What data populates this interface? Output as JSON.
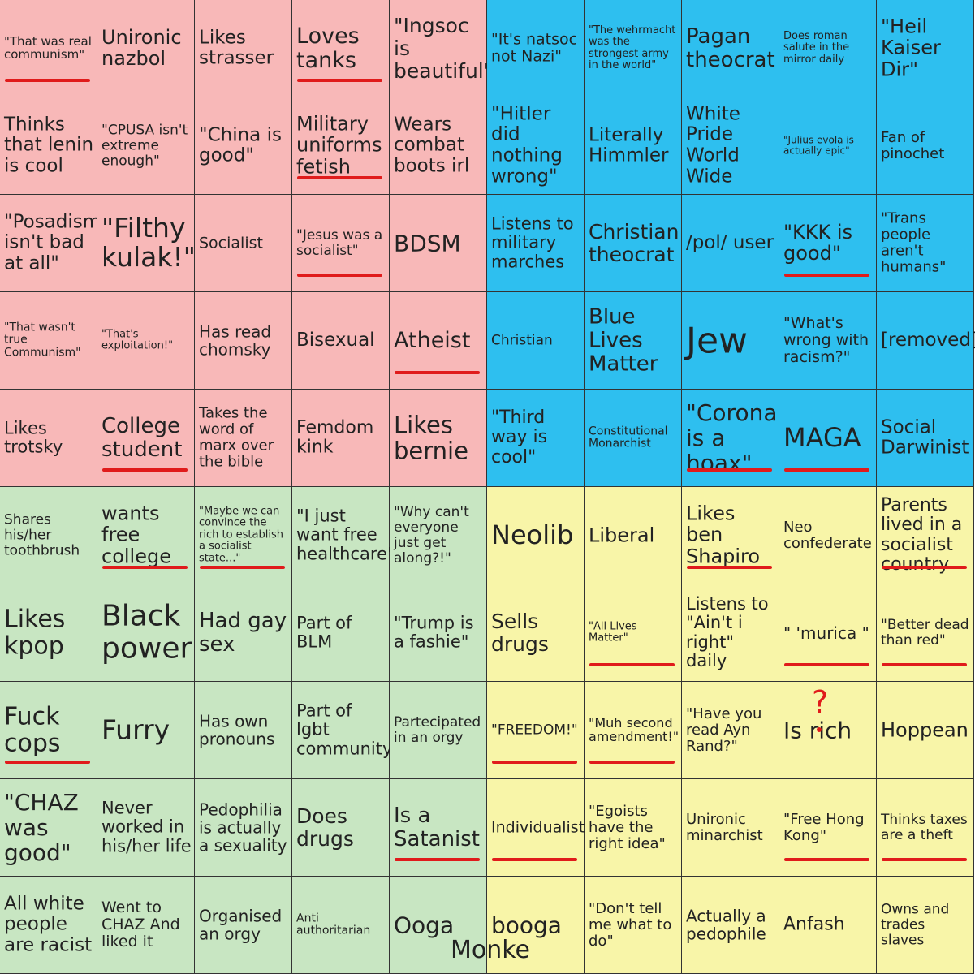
{
  "colors": {
    "top_left": "#f8b8b8",
    "top_right": "#2ebfef",
    "bottom_left": "#c8e6c2",
    "bottom_right": "#f8f5a8",
    "underline": "#e01b1b"
  },
  "cells": [
    [
      "\"That was real communism\"",
      "Unironic nazbol",
      "Likes strasser",
      "Loves tanks",
      "\"Ingsoc is beautiful\"",
      "\"It's natsoc not Nazi\"",
      "\"The wehrmacht was the strongest army in the world\"",
      "Pagan theocrat",
      "Does roman salute in the mirror daily",
      "\"Heil Kaiser Dir\""
    ],
    [
      "Thinks that lenin is cool",
      "\"CPUSA isn't extreme enough\"",
      "\"China is good\"",
      "Military uniforms fetish",
      "Wears combat boots irl",
      "\"Hitler did nothing wrong\"",
      "Literally Himmler",
      "White Pride World Wide",
      "\"Julius evola is actually epic\"",
      "Fan of pinochet"
    ],
    [
      "\"Posadism isn't bad at all\"",
      "\"Filthy kulak!\"",
      "Socialist",
      "\"Jesus was a socialist\"",
      "BDSM",
      "Listens to military marches",
      "Christian theocrat",
      "/pol/ user",
      "\"KKK is good\"",
      "\"Trans people aren't humans\""
    ],
    [
      "\"That wasn't true Communism\"",
      "\"That's exploitation!\"",
      "Has read chomsky",
      "Bisexual",
      "Atheist",
      "Christian",
      "Blue Lives Matter",
      "Jew",
      "\"What's wrong with racism?\"",
      "[removed]"
    ],
    [
      "Likes trotsky",
      "College student",
      "Takes the word of marx over the bible",
      "Femdom kink",
      "Likes bernie",
      "\"Third way is cool\"",
      "Constitutional Monarchist",
      "\"Corona is a hoax\"",
      "MAGA",
      "Social Darwinist"
    ],
    [
      "Shares his/her toothbrush",
      "wants free college",
      "\"Maybe we can convince the rich to establish a socialist state...\"",
      "\"I just want free healthcare\"",
      "\"Why can't everyone just get along?!\"",
      "Neolib",
      "Liberal",
      "Likes ben Shapiro",
      "Neo confederate",
      "Parents lived in a socialist country"
    ],
    [
      "Likes kpop",
      "Black power!",
      "Had gay sex",
      "Part of BLM",
      "\"Trump is a fashie\"",
      "Sells drugs",
      "\"All Lives Matter\"",
      "Listens to \"Ain't i right\" daily",
      "\" 'murica \"",
      "\"Better dead than red\""
    ],
    [
      "Fuck cops",
      "Furry",
      "Has own pronouns",
      "Part of lgbt community",
      "Partecipated in an orgy",
      "\"FREEDOM!\"",
      "\"Muh second amendment!\"",
      "\"Have you read Ayn Rand?\"",
      "Is rich",
      "Hoppean"
    ],
    [
      "\"CHAZ was good\"",
      "Never worked in his/her life",
      "Pedophilia is actually a sexuality",
      "Does drugs",
      "Is a Satanist",
      "Individualist",
      "\"Egoists have the right idea\"",
      "Unironic minarchist",
      "\"Free Hong Kong\"",
      "Thinks taxes are a theft"
    ],
    [
      "All white people are racist",
      "Went to CHAZ And liked it",
      "Organised an orgy",
      "Anti authoritarian",
      "Ooga",
      "booga",
      "\"Don't tell me what to do\"",
      "Actually a pedophile",
      "Anfash",
      "Owns and trades slaves"
    ]
  ],
  "spanning_text": "Monke",
  "question_mark": "?"
}
